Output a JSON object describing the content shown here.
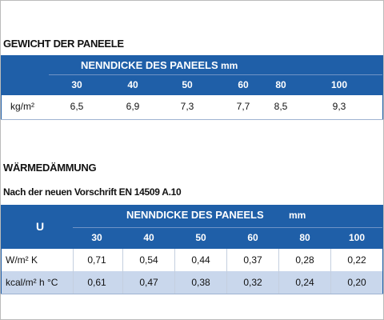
{
  "sections": [
    {
      "title": "GEWICHT DER PANEELE",
      "table": {
        "header": "NENNDICKE DES PANEELS",
        "unit": "mm",
        "columns": [
          30,
          40,
          50,
          60,
          80,
          100
        ],
        "rows": [
          {
            "label": "kg/m²",
            "cells": [
              "6,5",
              "6,9",
              "7,3",
              "7,7",
              "8,5",
              "9,3"
            ]
          }
        ]
      }
    },
    {
      "title": "WÄRMEDÄMMUNG",
      "subtitle": "Nach der neuen Vorschrift EN 14509 A.10",
      "table": {
        "corner": "U",
        "header": "NENNDICKE DES PANEELS",
        "unit": "mm",
        "columns": [
          30,
          40,
          50,
          60,
          80,
          100
        ],
        "rows": [
          {
            "label": "W/m² K",
            "cells": [
              "0,71",
              "0,54",
              "0,44",
              "0,37",
              "0,28",
              "0,22"
            ]
          },
          {
            "label": "kcal/m² h °C",
            "cells": [
              "0,61",
              "0,47",
              "0,38",
              "0,32",
              "0,24",
              "0,20"
            ]
          }
        ]
      }
    }
  ]
}
